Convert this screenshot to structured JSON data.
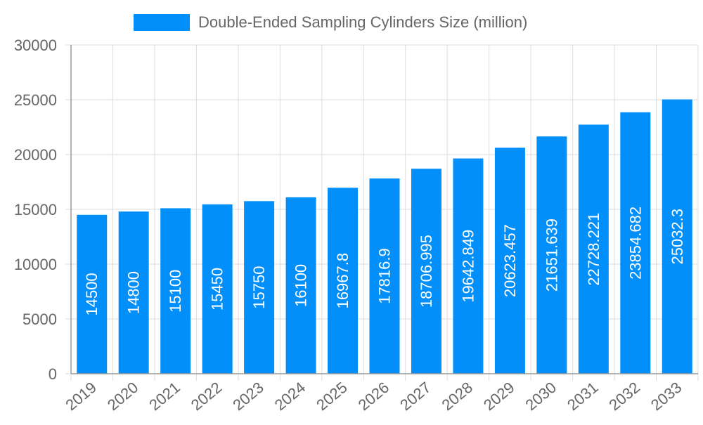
{
  "chart_data": {
    "type": "bar",
    "title": "",
    "xlabel": "",
    "ylabel": "",
    "ylim": [
      0,
      30000
    ],
    "yticks": [
      0,
      5000,
      10000,
      15000,
      20000,
      25000,
      30000
    ],
    "grid": true,
    "legend_position": "top",
    "categories": [
      "2019",
      "2020",
      "2021",
      "2022",
      "2023",
      "2024",
      "2025",
      "2026",
      "2027",
      "2028",
      "2029",
      "2030",
      "2031",
      "2032",
      "2033"
    ],
    "series": [
      {
        "name": "Double-Ended Sampling Cylinders Size (million)",
        "color": "#038ffa",
        "values": [
          14500,
          14800,
          15100,
          15450,
          15750,
          16100,
          16967.8,
          17816.9,
          18706.995,
          19642.849,
          20623.457,
          21651.639,
          22728.221,
          23854.682,
          25032.3
        ]
      }
    ]
  }
}
